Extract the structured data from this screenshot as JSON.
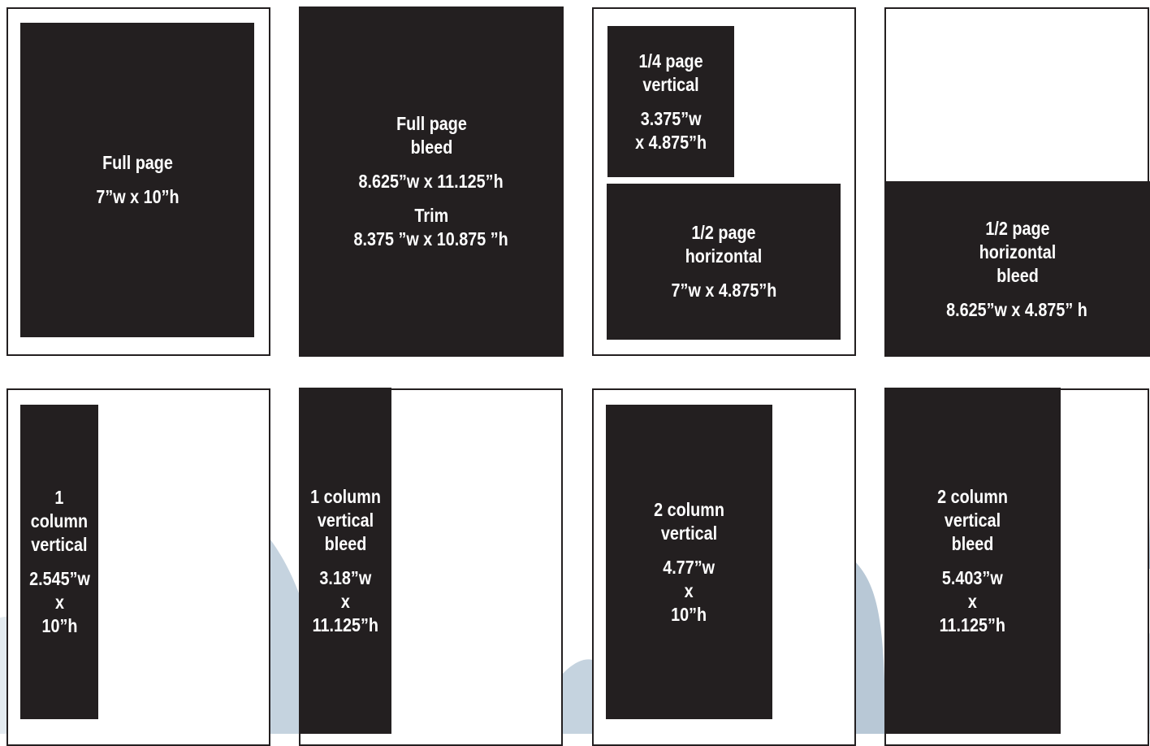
{
  "colors": {
    "ad_fill": "#231f20",
    "page_border": "#231f20",
    "background_swoosh": "#b8c8d6"
  },
  "ads": [
    {
      "id": "full-page",
      "label": "Full page",
      "dims": "7”w x 10”h"
    },
    {
      "id": "full-page-bleed",
      "label": "Full page\nbleed",
      "dims": "8.625”w x 11.125”h",
      "trim_label": "Trim",
      "trim_dims": "8.375 ”w x 10.875 ”h"
    },
    {
      "id": "quarter-page-vertical",
      "label": "1/4 page\nvertical",
      "dims": "3.375”w\nx 4.875”h"
    },
    {
      "id": "half-page-horizontal",
      "label": "1/2 page\nhorizontal",
      "dims": "7”w x 4.875”h"
    },
    {
      "id": "half-page-horizontal-bleed",
      "label": "1/2 page\nhorizontal\nbleed",
      "dims": "8.625”w x 4.875” h"
    },
    {
      "id": "one-column-vertical",
      "label": "1\ncolumn\nvertical",
      "dims": "2.545”w\nx\n10”h"
    },
    {
      "id": "one-column-vertical-bleed",
      "label": "1 column\nvertical\nbleed",
      "dims": "3.18”w\nx\n11.125”h"
    },
    {
      "id": "two-column-vertical",
      "label": "2 column\nvertical",
      "dims": "4.77”w\nx\n10”h"
    },
    {
      "id": "two-column-vertical-bleed",
      "label": "2 column\nvertical\nbleed",
      "dims": "5.403”w\nx\n11.125”h"
    }
  ]
}
